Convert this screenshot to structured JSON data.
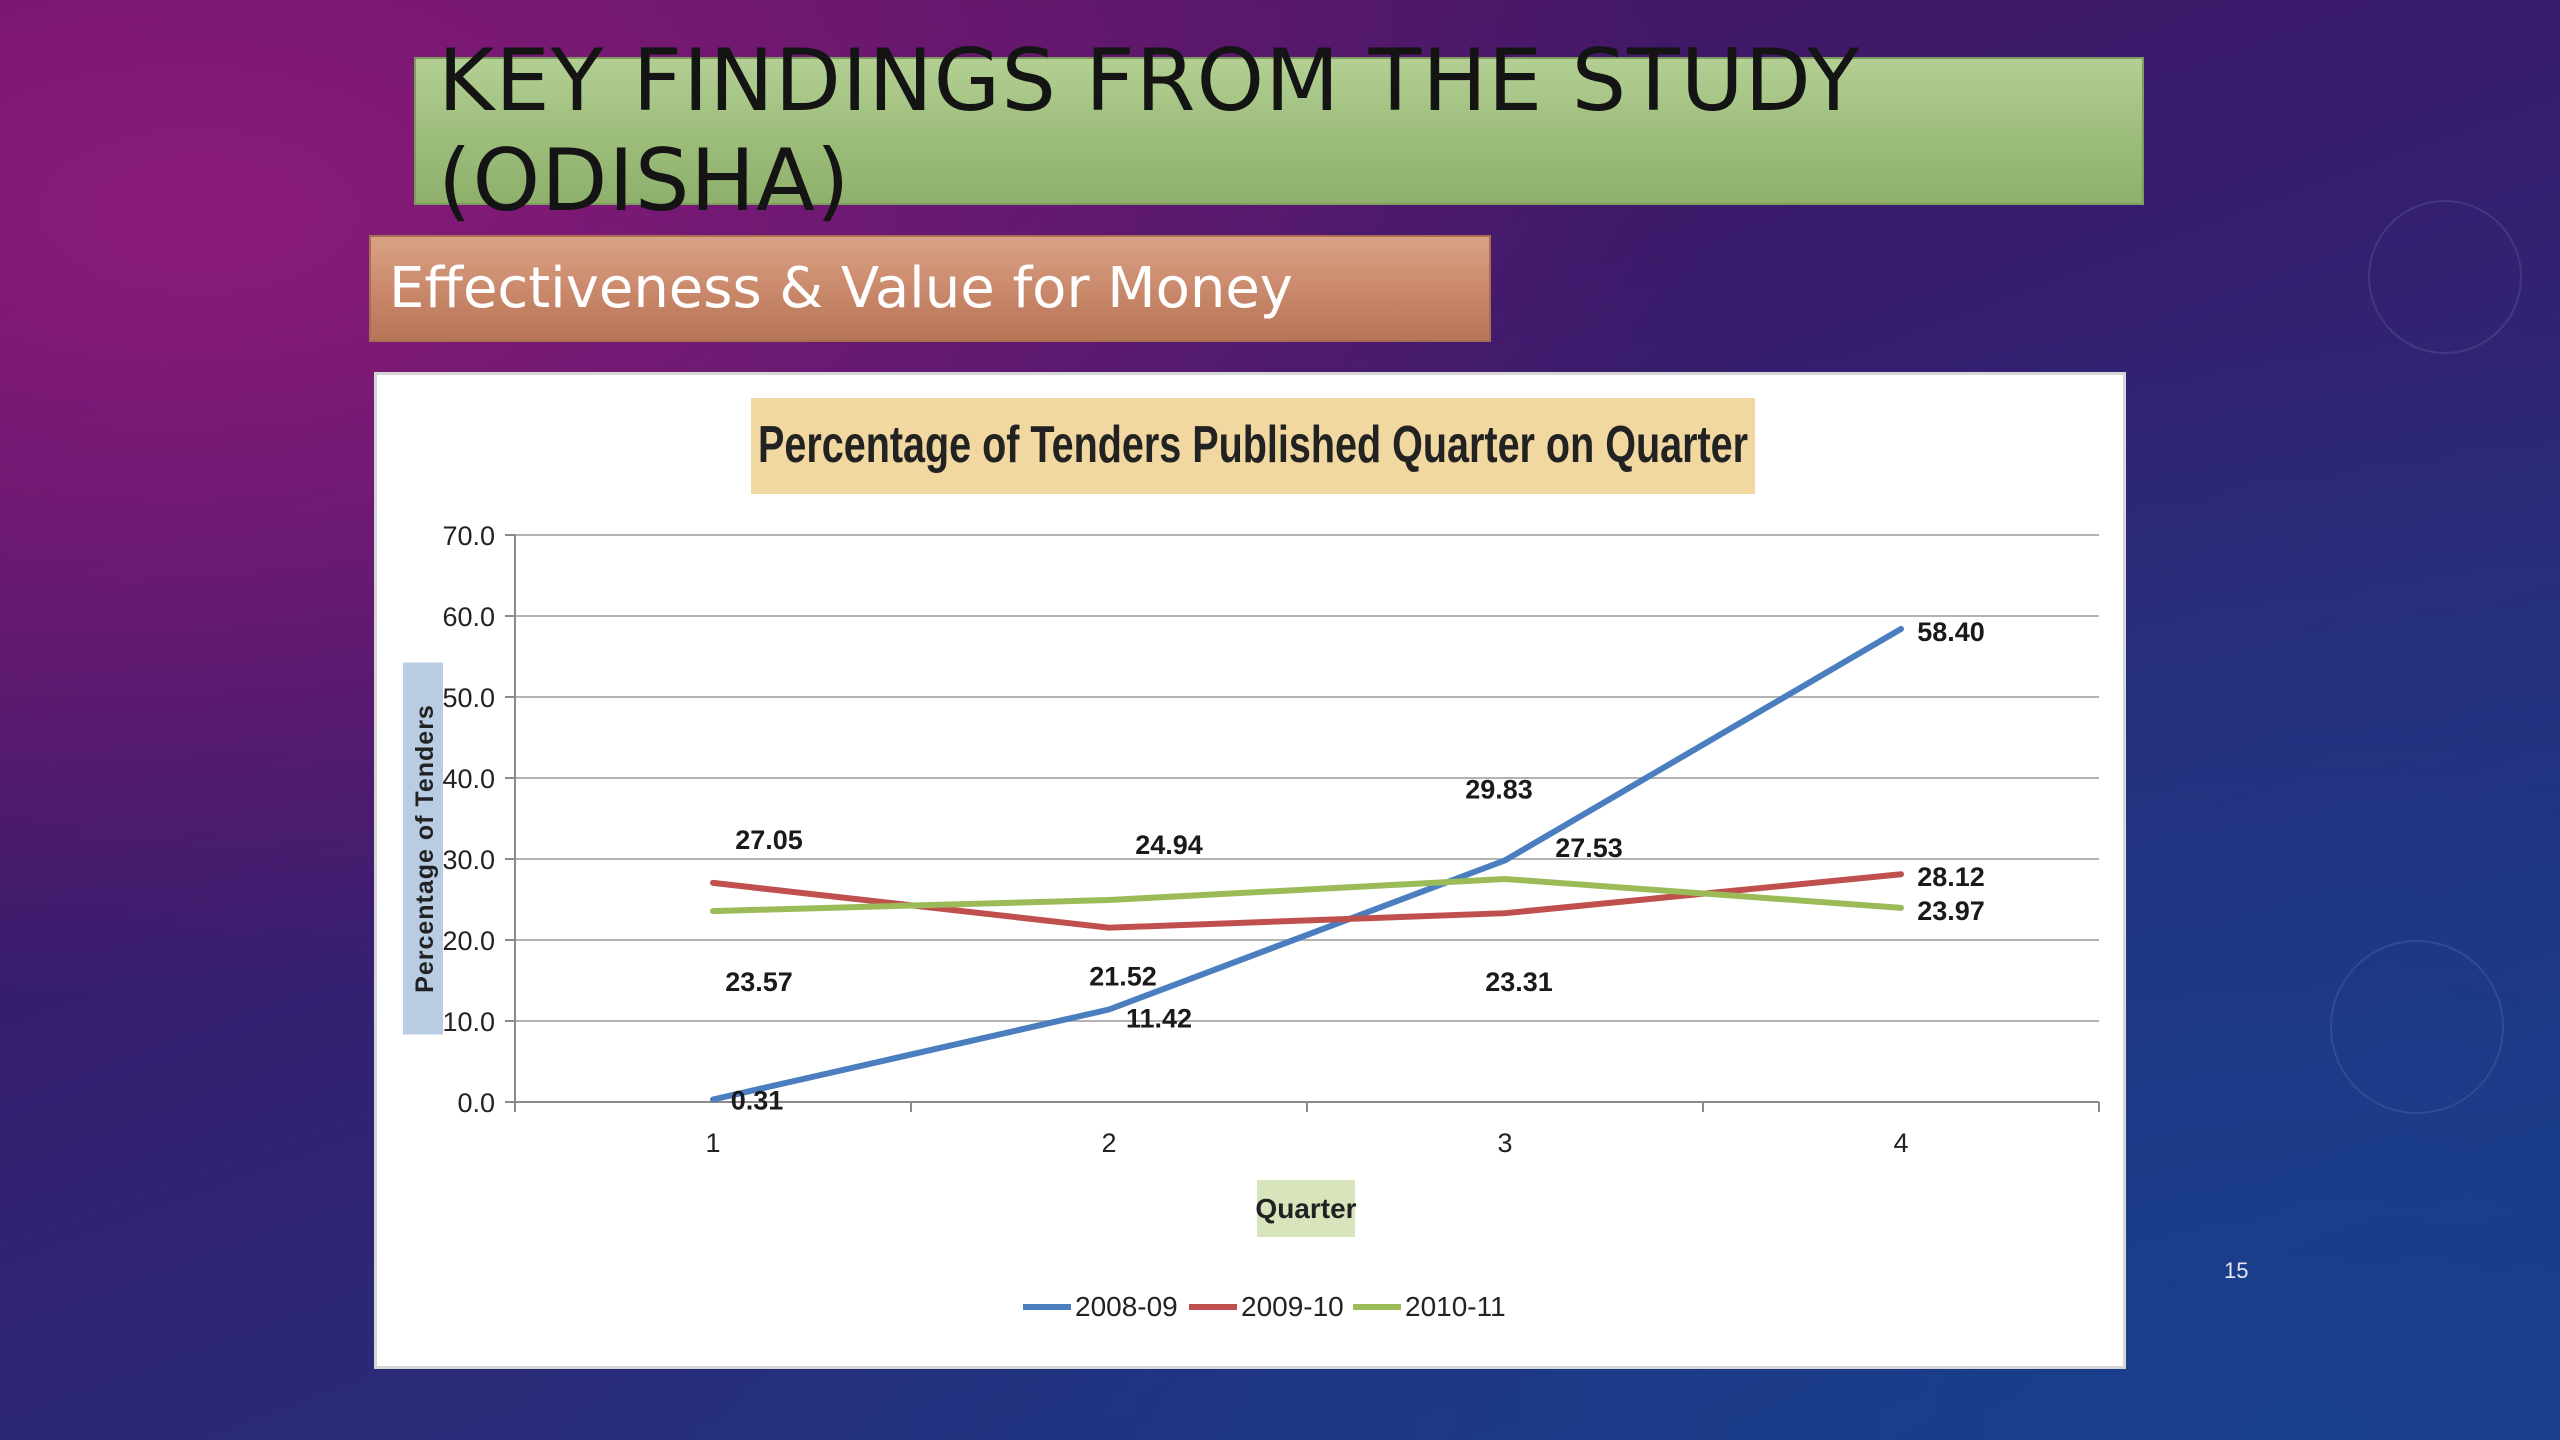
{
  "slide": {
    "title": "KEY FINDINGS FROM THE STUDY (ODISHA)",
    "subtitle": "Effectiveness & Value for Money",
    "slide_number": "15"
  },
  "colors": {
    "series_2008_09": "#4a7ebf",
    "series_2009_10": "#c0504d",
    "series_2010_11": "#9bbb59"
  },
  "chart_data": {
    "type": "line",
    "title": "Percentage of Tenders Published Quarter on Quarter",
    "xlabel": "Quarter",
    "ylabel": "Percentage of Tenders",
    "categories": [
      "1",
      "2",
      "3",
      "4"
    ],
    "ylim": [
      0,
      70
    ],
    "yticks": [
      "0.0",
      "10.0",
      "20.0",
      "30.0",
      "40.0",
      "50.0",
      "60.0",
      "70.0"
    ],
    "grid": true,
    "legend_position": "bottom",
    "series": [
      {
        "name": "2008-09",
        "values": [
          0.31,
          11.42,
          29.83,
          58.4
        ],
        "labels": [
          "0.31",
          "11.42",
          "29.83",
          "58.40"
        ]
      },
      {
        "name": "2009-10",
        "values": [
          27.05,
          21.52,
          23.31,
          28.12
        ],
        "labels": [
          "27.05",
          "21.52",
          "23.31",
          "28.12"
        ]
      },
      {
        "name": "2010-11",
        "values": [
          23.57,
          24.94,
          27.53,
          23.97
        ],
        "labels": [
          "23.57",
          "24.94",
          "27.53",
          "23.97"
        ]
      }
    ]
  }
}
